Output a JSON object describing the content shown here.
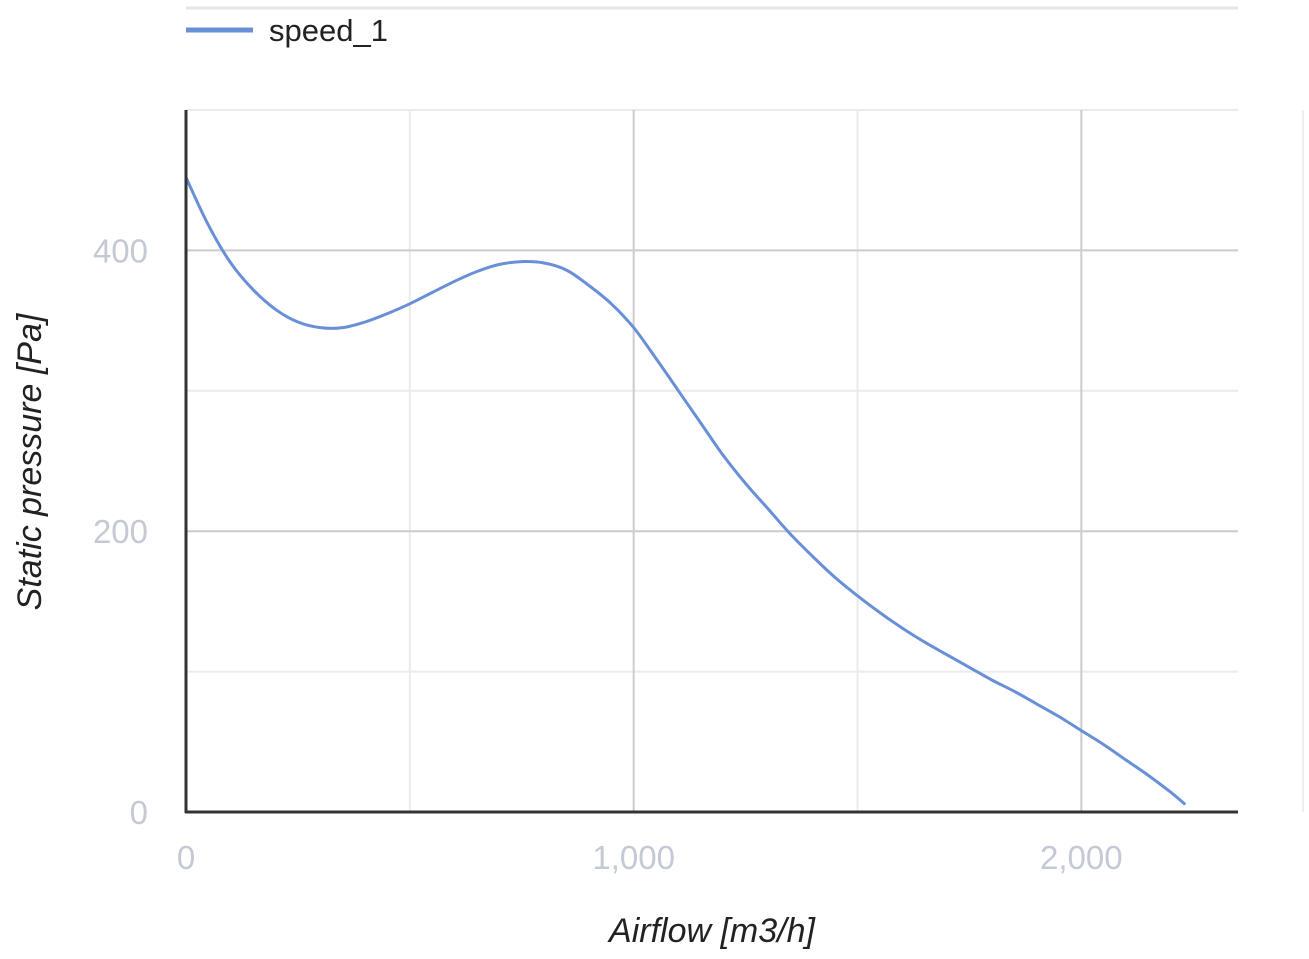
{
  "chart_data": {
    "type": "line",
    "title": "",
    "xlabel": "Airflow [m3/h]",
    "ylabel": "Static pressure [Pa]",
    "xlim": [
      0,
      2350
    ],
    "ylim": [
      0,
      500
    ],
    "x_ticks": [
      0,
      1000,
      2000
    ],
    "x_tick_labels": [
      "0",
      "1,000",
      "2,000"
    ],
    "x_minor_grid": [
      500,
      1500
    ],
    "y_ticks": [
      0,
      200,
      400
    ],
    "y_tick_labels": [
      "0",
      "200",
      "400"
    ],
    "y_minor_grid": [
      100,
      300,
      500
    ],
    "grid": true,
    "legend_position": "top-left",
    "series": [
      {
        "name": "speed_1",
        "color": "#6a8fd9",
        "x": [
          0,
          50,
          100,
          150,
          200,
          250,
          300,
          350,
          400,
          450,
          500,
          550,
          600,
          650,
          700,
          750,
          800,
          850,
          900,
          950,
          1000,
          1050,
          1100,
          1150,
          1200,
          1250,
          1300,
          1350,
          1400,
          1450,
          1500,
          1550,
          1600,
          1650,
          1700,
          1750,
          1800,
          1850,
          1900,
          1950,
          2000,
          2050,
          2100,
          2150,
          2200,
          2230
        ],
        "values": [
          452,
          418,
          391,
          372,
          358,
          349,
          345,
          345,
          349,
          355,
          362,
          370,
          378,
          385,
          390,
          392,
          391,
          386,
          375,
          362,
          345,
          323,
          300,
          277,
          254,
          234,
          216,
          198,
          182,
          167,
          154,
          142,
          131,
          121,
          112,
          103,
          94,
          86,
          77,
          68,
          58,
          48,
          37,
          26,
          14,
          6
        ]
      }
    ]
  }
}
